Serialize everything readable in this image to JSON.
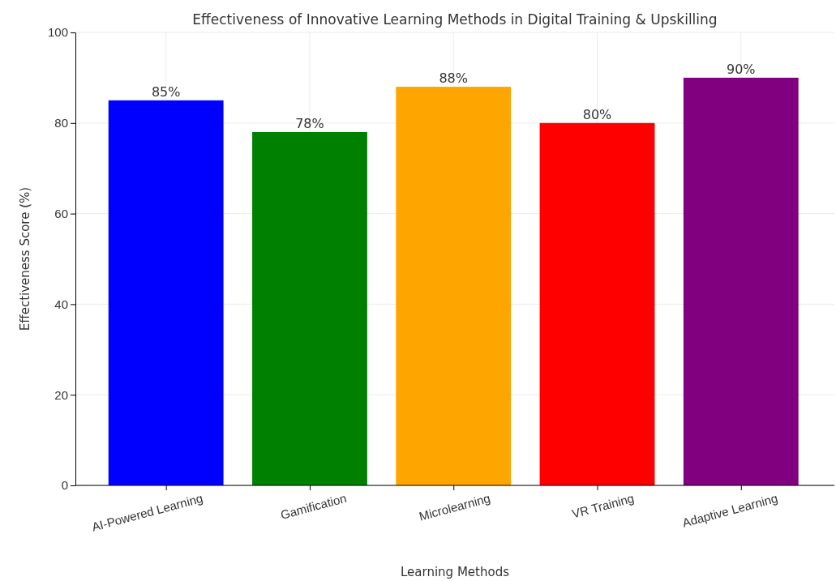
{
  "chart_data": {
    "type": "bar",
    "title": "Effectiveness of Innovative Learning Methods in Digital Training & Upskilling",
    "xlabel": "Learning Methods",
    "ylabel": "Effectiveness Score (%)",
    "categories": [
      "AI-Powered Learning",
      "Gamification",
      "Microlearning",
      "VR Training",
      "Adaptive Learning"
    ],
    "values": [
      85,
      78,
      88,
      80,
      90
    ],
    "colors": [
      "#0000ff",
      "#008000",
      "#ffa500",
      "#ff0000",
      "#800080"
    ],
    "value_labels": [
      "85%",
      "78%",
      "88%",
      "80%",
      "90%"
    ],
    "ylim": [
      0,
      100
    ],
    "yticks": [
      0,
      20,
      40,
      60,
      80,
      100
    ],
    "grid": true
  }
}
